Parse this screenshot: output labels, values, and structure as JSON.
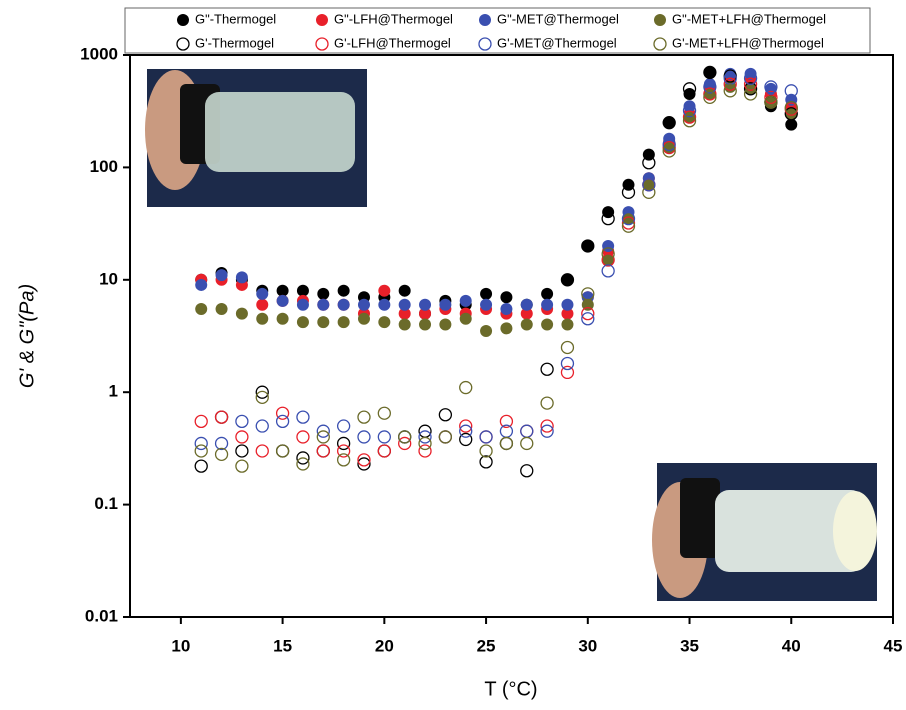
{
  "chart_data": {
    "type": "scatter",
    "xlabel": "T (°C)",
    "ylabel": "G' & G\"(Pa)",
    "x": [
      11,
      12,
      13,
      14,
      15,
      16,
      17,
      18,
      19,
      20,
      21,
      22,
      23,
      24,
      25,
      26,
      27,
      28,
      29,
      30,
      31,
      32,
      33,
      34,
      35,
      36,
      37,
      38,
      39,
      40
    ],
    "xlim": [
      7.5,
      45
    ],
    "xticks": [
      10,
      15,
      20,
      25,
      30,
      35,
      40,
      45
    ],
    "ylim": [
      0.01,
      1000
    ],
    "yticks": [
      0.01,
      0.1,
      1,
      10,
      100,
      1000
    ],
    "log_y": true,
    "series": [
      {
        "name": "G\"-Thermogel",
        "color": "#000000",
        "marker": "filled",
        "values": [
          10,
          11.5,
          10,
          8,
          8,
          8,
          7.5,
          8,
          7,
          7,
          8,
          5,
          6.5,
          6,
          7.5,
          7,
          6,
          7.5,
          10,
          20,
          40,
          70,
          130,
          250,
          450,
          700,
          650,
          500,
          350,
          240
        ]
      },
      {
        "name": "G\"-LFH@Thermogel",
        "color": "#e8202a",
        "marker": "filled",
        "values": [
          10,
          10,
          9,
          6,
          6.5,
          6.5,
          6,
          6,
          5,
          8,
          5,
          5,
          5.5,
          5,
          5.5,
          5,
          5,
          5.5,
          5,
          7,
          18,
          35,
          80,
          170,
          300,
          500,
          600,
          600,
          450,
          350
        ]
      },
      {
        "name": "G\"-MET@Thermogel",
        "color": "#3a4fb0",
        "marker": "filled",
        "values": [
          9,
          11,
          10.5,
          7.5,
          6.5,
          6,
          6,
          6,
          6,
          6,
          6,
          6,
          6,
          6.5,
          6,
          5.5,
          6,
          6,
          6,
          7,
          20,
          40,
          80,
          180,
          350,
          550,
          680,
          680,
          500,
          400
        ]
      },
      {
        "name": "G\"-MET+LFH@Thermogel",
        "color": "#6b6b2a",
        "marker": "filled",
        "values": [
          5.5,
          5.5,
          5,
          4.5,
          4.5,
          4.2,
          4.2,
          4.2,
          4.5,
          4.2,
          4,
          4,
          4,
          4.5,
          3.5,
          3.7,
          4,
          4,
          4,
          6,
          15,
          35,
          70,
          150,
          280,
          450,
          520,
          500,
          380,
          300
        ]
      },
      {
        "name": "G'-Thermogel",
        "color": "#000000",
        "marker": "open",
        "values": [
          0.22,
          0.6,
          0.3,
          1,
          0.3,
          0.26,
          0.3,
          0.35,
          0.23,
          0.3,
          0.4,
          0.45,
          0.63,
          0.38,
          0.24,
          0.35,
          0.2,
          1.6,
          10,
          20,
          35,
          60,
          110,
          250,
          500,
          700,
          650,
          500,
          380,
          300
        ]
      },
      {
        "name": "G'-LFH@Thermogel",
        "color": "#e8202a",
        "marker": "open",
        "values": [
          0.55,
          0.6,
          0.4,
          0.3,
          0.65,
          0.4,
          0.3,
          0.3,
          0.25,
          0.3,
          0.35,
          0.3,
          0.4,
          0.5,
          0.4,
          0.55,
          0.45,
          0.5,
          1.5,
          5,
          15,
          32,
          70,
          150,
          280,
          450,
          550,
          550,
          420,
          330
        ]
      },
      {
        "name": "G'-MET@Thermogel",
        "color": "#3a4fb0",
        "marker": "open",
        "values": [
          0.35,
          0.35,
          0.55,
          0.5,
          0.55,
          0.6,
          0.45,
          0.5,
          0.4,
          0.4,
          0.4,
          0.4,
          0.4,
          0.45,
          0.4,
          0.45,
          0.45,
          0.45,
          1.8,
          4.5,
          12,
          35,
          70,
          160,
          320,
          520,
          620,
          620,
          520,
          480
        ]
      },
      {
        "name": "G'-MET+LFH@Thermogel",
        "color": "#6b6b2a",
        "marker": "open",
        "values": [
          0.3,
          0.28,
          0.22,
          0.9,
          0.3,
          0.23,
          0.4,
          0.25,
          0.6,
          0.65,
          0.4,
          0.35,
          0.4,
          1.1,
          0.3,
          0.35,
          0.35,
          0.8,
          2.5,
          7.5,
          17,
          30,
          60,
          140,
          260,
          420,
          480,
          450,
          380,
          340
        ]
      }
    ]
  }
}
